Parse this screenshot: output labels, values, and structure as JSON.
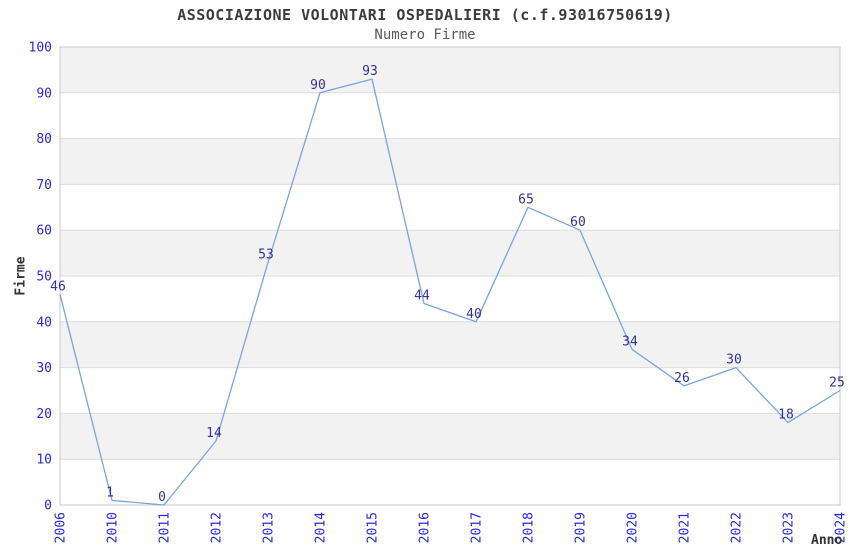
{
  "header": {
    "title": "ASSOCIAZIONE VOLONTARI OSPEDALIERI (c.f.93016750619)",
    "subtitle": "Numero Firme"
  },
  "chart_data": {
    "type": "line",
    "title": "ASSOCIAZIONE VOLONTARI OSPEDALIERI (c.f.93016750619)",
    "subtitle": "Numero Firme",
    "categories": [
      "2006",
      "2010",
      "2011",
      "2012",
      "2013",
      "2014",
      "2015",
      "2016",
      "2017",
      "2018",
      "2019",
      "2020",
      "2021",
      "2022",
      "2023",
      "2024"
    ],
    "values": [
      46,
      1,
      0,
      14,
      53,
      90,
      93,
      44,
      40,
      65,
      60,
      34,
      26,
      30,
      18,
      25
    ],
    "xlabel": "Anno",
    "ylabel": "Firme",
    "ylim": [
      0,
      100
    ],
    "ytick_step": 10,
    "yticks": [
      0,
      10,
      20,
      30,
      40,
      50,
      60,
      70,
      80,
      90,
      100
    ],
    "grid": true,
    "legend": false,
    "point_labels_visible": true,
    "x_tick_rotation": -90,
    "colors": {
      "line": "#76a5e3",
      "tick_label": "#2a2ad9",
      "point_label": "#333399",
      "band_gray": "#f2f2f2",
      "band_white": "#ffffff",
      "gridline": "#dcdcdc",
      "plot_border": "#c9c9c9",
      "title_text": "#3c3c3c",
      "subtitle_text": "#5a5a5a",
      "axis_label_text": "#333333"
    }
  }
}
